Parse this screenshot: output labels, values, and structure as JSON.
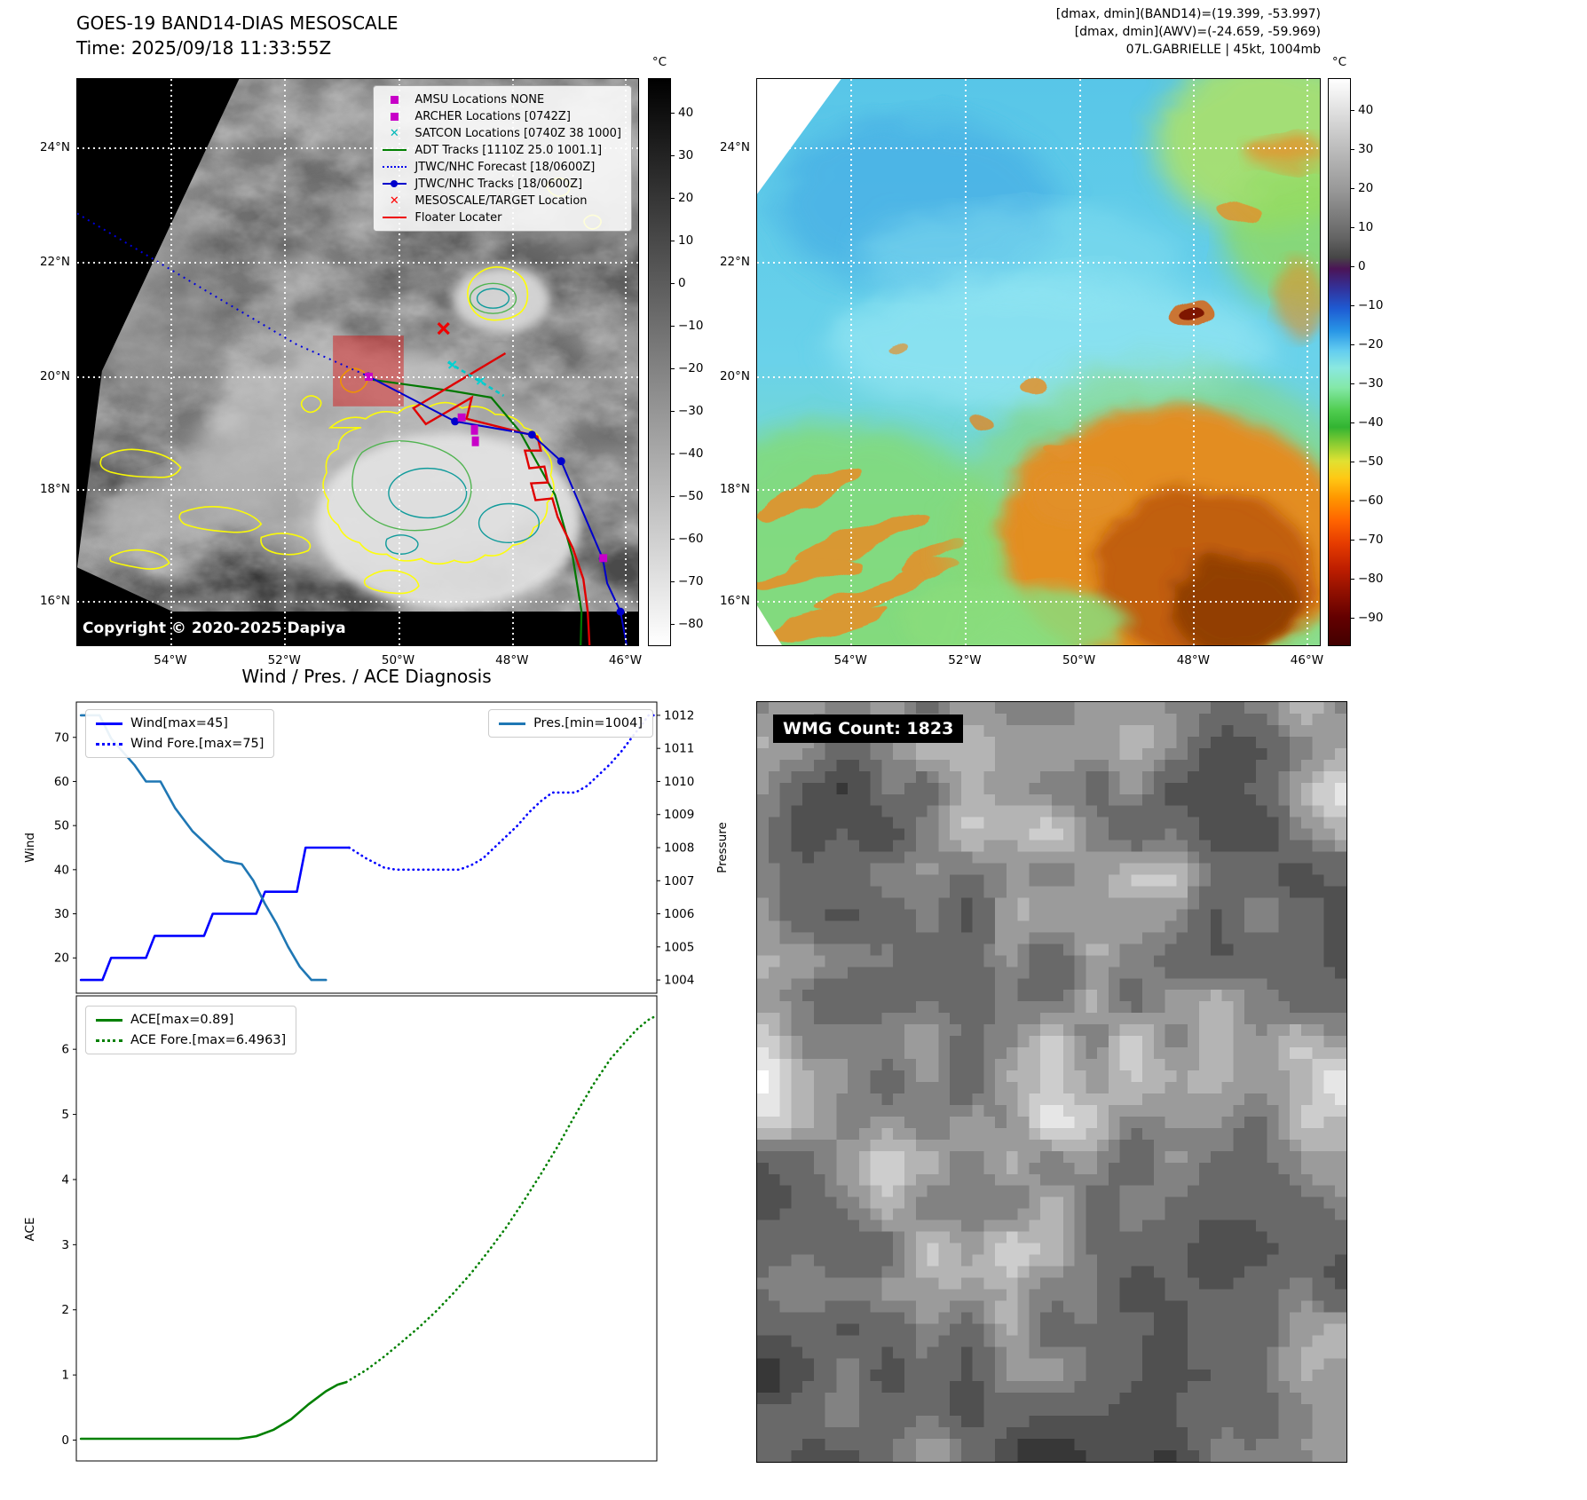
{
  "top_left": {
    "title": "GOES-19 BAND14-DIAS MESOSCALE",
    "time_line": "Time: 2025/09/18 11:33:55Z",
    "copyright": "Copyright © 2020-2025 Dapiya",
    "legend_items": [
      {
        "label": "AMSU Locations NONE",
        "marker": "square",
        "color": "#c800c8"
      },
      {
        "label": "ARCHER Locations [0742Z]",
        "marker": "square",
        "color": "#c800c8"
      },
      {
        "label": "SATCON Locations [0740Z 38 1000]",
        "marker": "x",
        "color": "#00b8b8"
      },
      {
        "label": "ADT Tracks [1110Z 25.0 1001.1]",
        "marker": "line",
        "color": "#008000"
      },
      {
        "label": "JTWC/NHC Forecast [18/0600Z]",
        "marker": "dotted",
        "color": "#0000ee"
      },
      {
        "label": "JTWC/NHC Tracks [18/0600Z]",
        "marker": "line-dot",
        "color": "#0000cc"
      },
      {
        "label": "MESOSCALE/TARGET Location",
        "marker": "x",
        "color": "#ff0000"
      },
      {
        "label": "Floater Locater",
        "marker": "line",
        "color": "#ee0000"
      }
    ],
    "lat_ticks": [
      {
        "label": "24°N",
        "pos": 12.0
      },
      {
        "label": "22°N",
        "pos": 32.3
      },
      {
        "label": "20°N",
        "pos": 52.5
      },
      {
        "label": "18°N",
        "pos": 72.4
      },
      {
        "label": "16°N",
        "pos": 92.2
      }
    ],
    "lon_ticks": [
      {
        "label": "54°W",
        "pos": 16.6
      },
      {
        "label": "52°W",
        "pos": 36.9
      },
      {
        "label": "50°W",
        "pos": 57.2
      },
      {
        "label": "48°W",
        "pos": 77.5
      },
      {
        "label": "46°W",
        "pos": 97.7
      }
    ],
    "colorbar": {
      "unit": "°C",
      "vmax": 48,
      "vmin": -85,
      "ticks": [
        40,
        30,
        20,
        10,
        0,
        -10,
        -20,
        -30,
        -40,
        -50,
        -60,
        -70,
        -80
      ]
    }
  },
  "top_right": {
    "header_line1": "[dmax, dmin](BAND14)=(19.399, -53.997)",
    "header_line2": "[dmax, dmin](AWV)=(-24.659, -59.969)",
    "header_line3": "07L.GABRIELLE | 45kt, 1004mb",
    "lat_ticks": [
      {
        "label": "24°N",
        "pos": 12.0
      },
      {
        "label": "22°N",
        "pos": 32.3
      },
      {
        "label": "20°N",
        "pos": 52.5
      },
      {
        "label": "18°N",
        "pos": 72.4
      },
      {
        "label": "16°N",
        "pos": 92.2
      }
    ],
    "lon_ticks": [
      {
        "label": "54°W",
        "pos": 16.6
      },
      {
        "label": "52°W",
        "pos": 36.9
      },
      {
        "label": "50°W",
        "pos": 57.2
      },
      {
        "label": "48°W",
        "pos": 77.5
      },
      {
        "label": "46°W",
        "pos": 97.7
      }
    ],
    "colorbar": {
      "unit": "°C",
      "vmax": 48,
      "vmin": -97,
      "ticks": [
        40,
        30,
        20,
        10,
        0,
        -10,
        -20,
        -30,
        -40,
        -50,
        -60,
        -70,
        -80,
        -90
      ]
    }
  },
  "bottom_right": {
    "wmg_label": "WMG Count: 1823"
  },
  "chart_data": [
    {
      "id": "wind-pressure-chart",
      "type": "line",
      "title": "Wind /  Pres. / ACE Diagnosis",
      "xlabel": "",
      "xlim": [
        0,
        100
      ],
      "grid": false,
      "left": {
        "label": "Wind",
        "lim": [
          12,
          78
        ],
        "ticks": [
          20,
          30,
          40,
          50,
          60,
          70
        ]
      },
      "right": {
        "label": "Pressure",
        "lim": [
          1003.6,
          1012.4
        ],
        "ticks": [
          1004,
          1005,
          1006,
          1007,
          1008,
          1009,
          1010,
          1011,
          1012
        ]
      },
      "series": [
        {
          "name": "Wind[max=45]",
          "axis": "left",
          "color": "#0000ff",
          "style": "solid",
          "points": [
            [
              0.8,
              15
            ],
            [
              4.5,
              15
            ],
            [
              6,
              20
            ],
            [
              12,
              20
            ],
            [
              13.5,
              25
            ],
            [
              22,
              25
            ],
            [
              23.5,
              30
            ],
            [
              31,
              30
            ],
            [
              32.5,
              35
            ],
            [
              38,
              35
            ],
            [
              39.5,
              45
            ],
            [
              47,
              45
            ]
          ]
        },
        {
          "name": "Wind Fore.[max=75]",
          "axis": "left",
          "color": "#0000ff",
          "style": "dotted",
          "points": [
            [
              47,
              45
            ],
            [
              50,
              42.5
            ],
            [
              53,
              40.5
            ],
            [
              55,
              40
            ],
            [
              66,
              40
            ],
            [
              68,
              41
            ],
            [
              70,
              42.5
            ],
            [
              72,
              45
            ],
            [
              74,
              47.5
            ],
            [
              76,
              50
            ],
            [
              78,
              53
            ],
            [
              80,
              55.5
            ],
            [
              82,
              57.5
            ],
            [
              86,
              57.5
            ],
            [
              88,
              59
            ],
            [
              90,
              61.5
            ],
            [
              92,
              64
            ],
            [
              94,
              67
            ],
            [
              96,
              70.5
            ],
            [
              97.5,
              73
            ],
            [
              98.6,
              75
            ],
            [
              100,
              75
            ]
          ]
        },
        {
          "name": "Pres.[min=1004]",
          "axis": "right",
          "color": "#1f77b4",
          "style": "solid",
          "points": [
            [
              0.8,
              1012
            ],
            [
              4,
              1012
            ],
            [
              6,
              1011.3
            ],
            [
              10,
              1010.5
            ],
            [
              12,
              1010
            ],
            [
              14.5,
              1010
            ],
            [
              17,
              1009.2
            ],
            [
              20,
              1008.5
            ],
            [
              23,
              1008
            ],
            [
              25.5,
              1007.6
            ],
            [
              28.5,
              1007.5
            ],
            [
              30.5,
              1007
            ],
            [
              32.5,
              1006.3
            ],
            [
              34.5,
              1005.7
            ],
            [
              36.5,
              1005
            ],
            [
              38.5,
              1004.4
            ],
            [
              40.5,
              1004
            ],
            [
              43,
              1004
            ]
          ]
        }
      ]
    },
    {
      "id": "ace-chart",
      "type": "line",
      "title": "",
      "xlabel": "",
      "xlim": [
        0,
        100
      ],
      "grid": false,
      "left": {
        "label": "ACE",
        "lim": [
          -0.32,
          6.82
        ],
        "ticks": [
          0,
          1,
          2,
          3,
          4,
          5,
          6
        ]
      },
      "series": [
        {
          "name": "ACE[max=0.89]",
          "axis": "left",
          "color": "#008000",
          "style": "solid",
          "points": [
            [
              0.8,
              0.02
            ],
            [
              28,
              0.02
            ],
            [
              31,
              0.06
            ],
            [
              34,
              0.16
            ],
            [
              37,
              0.32
            ],
            [
              40,
              0.55
            ],
            [
              43,
              0.75
            ],
            [
              45,
              0.85
            ],
            [
              46.5,
              0.89
            ]
          ]
        },
        {
          "name": "ACE Fore.[max=6.4963]",
          "axis": "left",
          "color": "#008000",
          "style": "dotted",
          "points": [
            [
              46.5,
              0.89
            ],
            [
              50,
              1.08
            ],
            [
              53,
              1.28
            ],
            [
              56,
              1.5
            ],
            [
              59,
              1.73
            ],
            [
              62,
              1.98
            ],
            [
              65,
              2.26
            ],
            [
              68,
              2.56
            ],
            [
              71,
              2.9
            ],
            [
              74,
              3.26
            ],
            [
              77,
              3.66
            ],
            [
              80,
              4.08
            ],
            [
              83,
              4.52
            ],
            [
              86,
              5.0
            ],
            [
              89,
              5.45
            ],
            [
              92,
              5.85
            ],
            [
              94.5,
              6.1
            ],
            [
              96.5,
              6.3
            ],
            [
              98.5,
              6.45
            ],
            [
              99.5,
              6.4963
            ]
          ]
        }
      ]
    }
  ]
}
